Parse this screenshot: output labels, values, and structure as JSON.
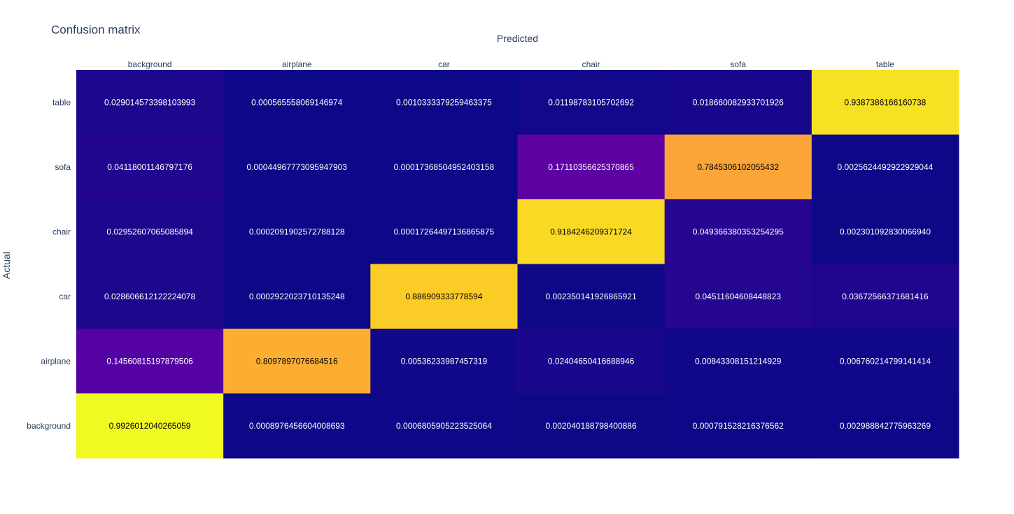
{
  "chart_data": {
    "type": "heatmap",
    "title": "Confusion matrix",
    "xlabel": "Predicted",
    "ylabel": "Actual",
    "x_categories": [
      "background",
      "airplane",
      "car",
      "chair",
      "sofa",
      "table"
    ],
    "y_categories": [
      "background",
      "airplane",
      "car",
      "chair",
      "sofa",
      "table"
    ],
    "z_rows_top_to_bottom": [
      [
        "0.029014573398103993",
        "0.000565558069146974",
        "0.0010333379259463375",
        "0.01198783105702692",
        "0.018660082933701926",
        "0.9387386166160738"
      ],
      [
        "0.04118001146797176",
        "0.00044967773095947903",
        "0.00017368504952403158",
        "0.17110356625370865",
        "0.7845306102055432",
        "0.0025624492922929044"
      ],
      [
        "0.02952607065085894",
        "0.0002091902572788128",
        "0.00017264497136865875",
        "0.9184246209371724",
        "0.049366380353254295",
        "0.002301092830066940"
      ],
      [
        "0.028606612122224078",
        "0.0002922023710135248",
        "0.886909333778594",
        "0.002350141926865921",
        "0.04511604608448823",
        "0.03672566371681416"
      ],
      [
        "0.14560815197879506",
        "0.8097897076684516",
        "0.00536233987457319",
        "0.02404650416688946",
        "0.00843308151214929",
        "0.006760214799141414"
      ],
      [
        "0.9926012040265059",
        "0.0008976456604008693",
        "0.0006805905223525064",
        "0.002040188798400886",
        "0.000791528216376562",
        "0.002988842775963269"
      ]
    ],
    "y_order": "table at top, background at bottom",
    "x_axis_position": "top",
    "colorscale": "plasma",
    "colorscale_stops": [
      "#0d0887",
      "#46039f",
      "#7201a8",
      "#9c179e",
      "#bd3786",
      "#d8576b",
      "#ed7953",
      "#fb9f3a",
      "#fdca26",
      "#f0f921"
    ],
    "grid": false,
    "legend": "none"
  }
}
